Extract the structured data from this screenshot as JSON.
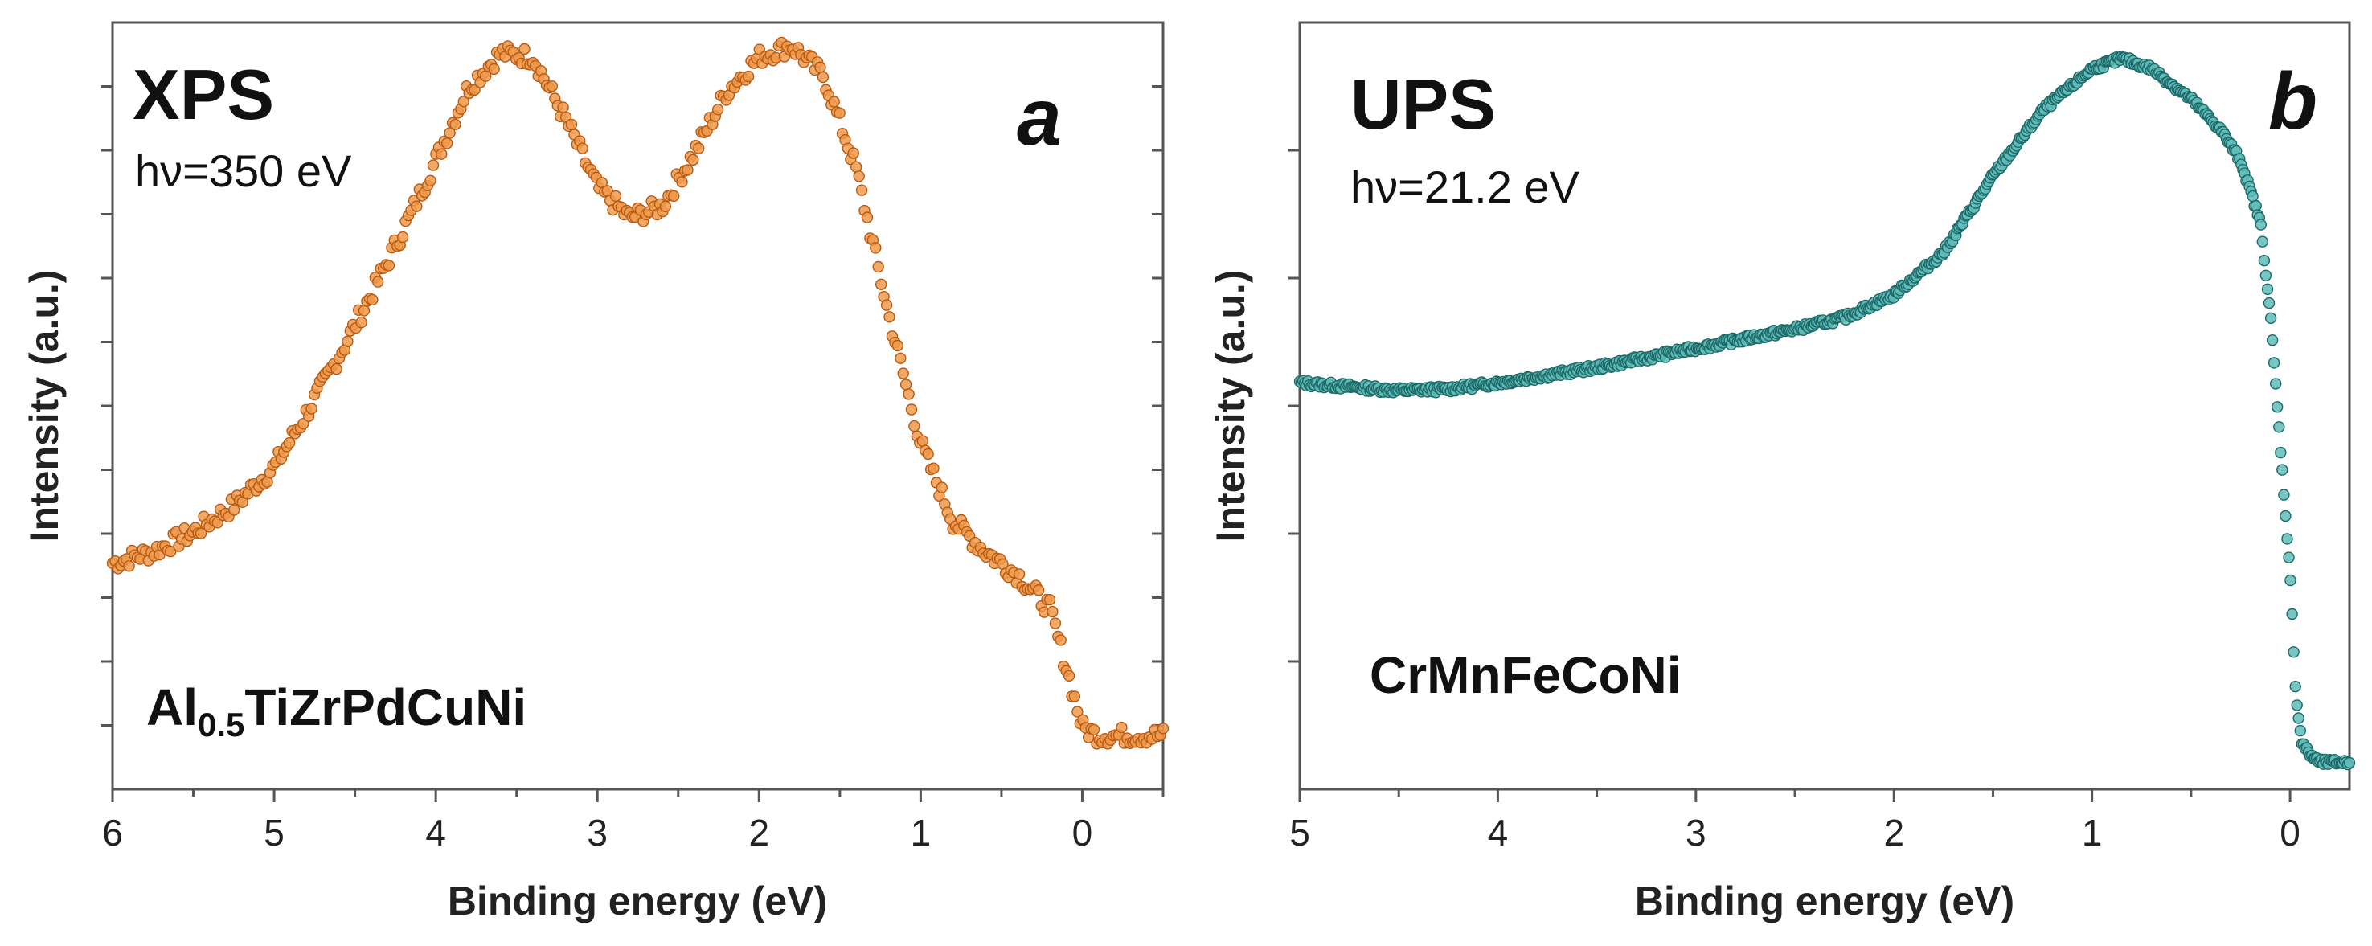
{
  "chart_data": [
    {
      "type": "scatter",
      "panel_letter": "a",
      "technique": "XPS",
      "photon_energy": "hν=350 eV",
      "sample_base": "Al",
      "sample_sub": "0.5",
      "sample_rest": "TiZrPdCuNi",
      "xlabel": "Binding energy (eV)",
      "ylabel": "Intensity (a.u.)",
      "xlim": [
        6,
        -0.5
      ],
      "ylim": [
        0,
        1
      ],
      "xticks": [
        "6",
        "5",
        "4",
        "3",
        "2",
        "1",
        "0"
      ],
      "y_tick_labels": "none",
      "marker_color": "#ef9a4a",
      "marker_edge": "#b85a14",
      "series": [
        {
          "name": "Al0.5TiZrPdCuNi",
          "x": [
            6.0,
            5.75,
            5.5,
            5.25,
            5.0,
            4.8,
            4.6,
            4.4,
            4.2,
            4.0,
            3.8,
            3.6,
            3.4,
            3.2,
            3.0,
            2.8,
            2.6,
            2.4,
            2.2,
            2.0,
            1.8,
            1.6,
            1.4,
            1.2,
            1.0,
            0.8,
            0.6,
            0.4,
            0.2,
            0.1,
            0.0,
            -0.1,
            -0.25,
            -0.5
          ],
          "y": [
            0.295,
            0.31,
            0.335,
            0.37,
            0.42,
            0.49,
            0.565,
            0.645,
            0.73,
            0.82,
            0.915,
            0.96,
            0.955,
            0.875,
            0.785,
            0.745,
            0.76,
            0.83,
            0.91,
            0.955,
            0.97,
            0.93,
            0.81,
            0.62,
            0.45,
            0.35,
            0.31,
            0.28,
            0.235,
            0.16,
            0.08,
            0.07,
            0.07,
            0.07
          ]
        }
      ]
    },
    {
      "type": "scatter",
      "panel_letter": "b",
      "technique": "UPS",
      "photon_energy": "hν=21.2 eV",
      "sample": "CrMnFeCoNi",
      "xlabel": "Binding energy (eV)",
      "ylabel": "Intensity (a.u.)",
      "xlim": [
        5,
        -0.3
      ],
      "ylim": [
        0,
        1
      ],
      "xticks": [
        "5",
        "4",
        "3",
        "2",
        "1",
        "0"
      ],
      "y_tick_labels": "none",
      "marker_color": "#5fbcb8",
      "marker_edge": "#1d6a68",
      "series": [
        {
          "name": "CrMnFeCoNi",
          "x": [
            5.0,
            4.75,
            4.5,
            4.25,
            4.0,
            3.5,
            3.0,
            2.5,
            2.25,
            2.0,
            1.75,
            1.5,
            1.25,
            1.0,
            0.85,
            0.7,
            0.5,
            0.35,
            0.25,
            0.15,
            0.1,
            0.05,
            0.0,
            -0.03,
            -0.06,
            -0.1,
            -0.15,
            -0.3
          ],
          "y": [
            0.53,
            0.525,
            0.52,
            0.522,
            0.53,
            0.55,
            0.575,
            0.6,
            0.615,
            0.645,
            0.7,
            0.8,
            0.885,
            0.94,
            0.953,
            0.94,
            0.9,
            0.86,
            0.82,
            0.74,
            0.62,
            0.45,
            0.28,
            0.12,
            0.06,
            0.045,
            0.035,
            0.035
          ]
        }
      ]
    }
  ]
}
